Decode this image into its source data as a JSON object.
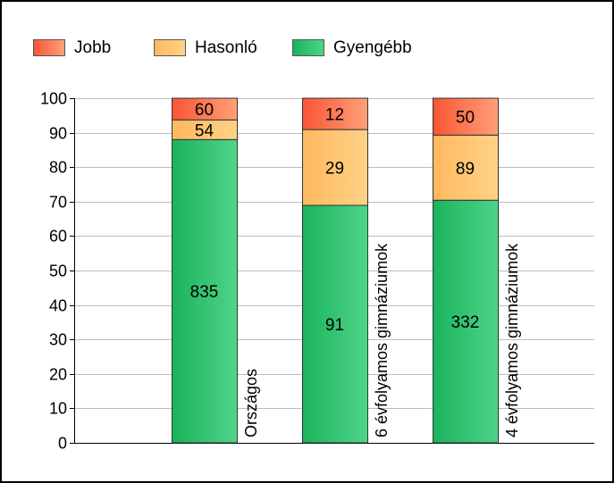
{
  "chart_data": {
    "type": "bar",
    "stacked": true,
    "categories": [
      "Országos",
      "6 évfolyamos gimnáziumok",
      "4 évfolyamos gimnáziumok"
    ],
    "series": [
      {
        "name": "Gyengébb",
        "values": [
          88.0,
          68.9,
          70.4
        ],
        "labels": [
          "835",
          "91",
          "332"
        ]
      },
      {
        "name": "Hasonló",
        "values": [
          5.7,
          22.0,
          18.9
        ],
        "labels": [
          "54",
          "29",
          "89"
        ]
      },
      {
        "name": "Jobb",
        "values": [
          6.3,
          9.1,
          10.7
        ],
        "labels": [
          "60",
          "12",
          "50"
        ]
      }
    ],
    "ylim": [
      0,
      100
    ],
    "yticks": [
      0,
      10,
      20,
      30,
      40,
      50,
      60,
      70,
      80,
      90,
      100
    ],
    "xlabel": "",
    "ylabel": "",
    "title": "",
    "grid": true,
    "legend_position": "top-left",
    "colors": {
      "Gyengébb": [
        "#1bb35c",
        "#4fd48a"
      ],
      "Hasonló": [
        "#ffb85e",
        "#ffd287"
      ],
      "Jobb": [
        "#f95535",
        "#ffa078"
      ]
    }
  }
}
